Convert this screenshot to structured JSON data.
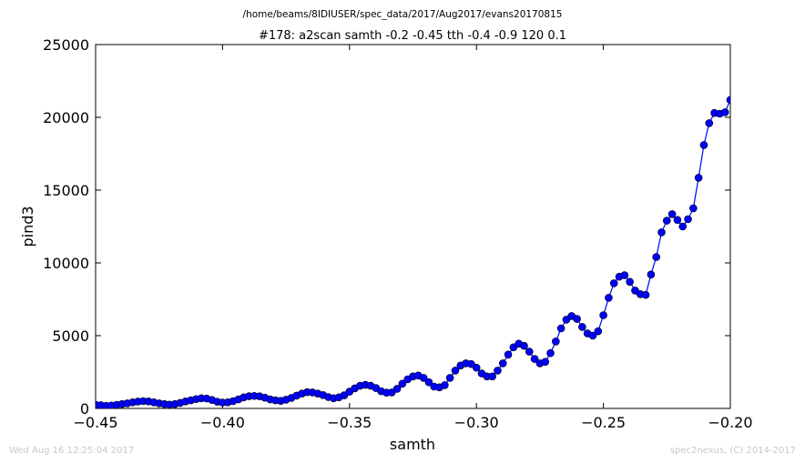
{
  "header": {
    "file_path": "/home/beams/8IDIUSER/spec_data/2017/Aug2017/evans20170815"
  },
  "footer": {
    "timestamp": "Wed Aug 16 12:25:04 2017",
    "credit": "spec2nexus, (C) 2014-2017"
  },
  "chart_data": {
    "type": "line",
    "title": "#178: a2scan  samth -0.2 -0.45  tth -0.4 -0.9  120 0.1",
    "xlabel": "samth",
    "ylabel": "pind3",
    "xlim": [
      -0.45,
      -0.2
    ],
    "ylim": [
      0,
      25000
    ],
    "xticks": [
      -0.45,
      -0.4,
      -0.35,
      -0.3,
      -0.25,
      -0.2
    ],
    "xtick_labels": [
      "−0.45",
      "−0.40",
      "−0.35",
      "−0.30",
      "−0.25",
      "−0.20"
    ],
    "yticks": [
      0,
      5000,
      10000,
      15000,
      20000,
      25000
    ],
    "ytick_labels": [
      "0",
      "5000",
      "10000",
      "15000",
      "20000",
      "25000"
    ],
    "grid": false,
    "legend": false,
    "series_color": "#0000ff",
    "marker": "circle",
    "x": [
      -0.45,
      -0.447917,
      -0.445833,
      -0.44375,
      -0.441667,
      -0.439583,
      -0.4375,
      -0.435417,
      -0.433333,
      -0.43125,
      -0.429167,
      -0.427083,
      -0.425,
      -0.422917,
      -0.420833,
      -0.41875,
      -0.416667,
      -0.414583,
      -0.4125,
      -0.410417,
      -0.408333,
      -0.40625,
      -0.404167,
      -0.402083,
      -0.4,
      -0.397917,
      -0.395833,
      -0.39375,
      -0.391667,
      -0.389583,
      -0.3875,
      -0.385417,
      -0.383333,
      -0.38125,
      -0.379167,
      -0.377083,
      -0.375,
      -0.372917,
      -0.370833,
      -0.36875,
      -0.366667,
      -0.364583,
      -0.3625,
      -0.360417,
      -0.358333,
      -0.35625,
      -0.354167,
      -0.352083,
      -0.35,
      -0.347917,
      -0.345833,
      -0.34375,
      -0.341667,
      -0.339583,
      -0.3375,
      -0.335417,
      -0.333333,
      -0.33125,
      -0.329167,
      -0.327083,
      -0.325,
      -0.322917,
      -0.320833,
      -0.31875,
      -0.316667,
      -0.314583,
      -0.3125,
      -0.310417,
      -0.308333,
      -0.30625,
      -0.304167,
      -0.302083,
      -0.3,
      -0.297917,
      -0.295833,
      -0.29375,
      -0.291667,
      -0.289583,
      -0.2875,
      -0.285417,
      -0.283333,
      -0.28125,
      -0.279167,
      -0.277083,
      -0.275,
      -0.272917,
      -0.270833,
      -0.26875,
      -0.266667,
      -0.264583,
      -0.2625,
      -0.260417,
      -0.258333,
      -0.25625,
      -0.254167,
      -0.252083,
      -0.25,
      -0.247917,
      -0.245833,
      -0.24375,
      -0.241667,
      -0.239583,
      -0.2375,
      -0.235417,
      -0.233333,
      -0.23125,
      -0.229167,
      -0.227083,
      -0.225,
      -0.222917,
      -0.220833,
      -0.21875,
      -0.216667,
      -0.214583,
      -0.2125,
      -0.210417,
      -0.208333,
      -0.20625,
      -0.204167,
      -0.202083,
      -0.2
    ],
    "y": [
      250,
      220,
      180,
      200,
      250,
      300,
      350,
      420,
      470,
      500,
      480,
      420,
      350,
      300,
      260,
      300,
      380,
      480,
      560,
      640,
      700,
      680,
      580,
      460,
      400,
      420,
      500,
      620,
      760,
      840,
      860,
      830,
      740,
      620,
      560,
      520,
      600,
      720,
      880,
      1020,
      1120,
      1100,
      1020,
      920,
      780,
      700,
      760,
      900,
      1150,
      1380,
      1560,
      1620,
      1560,
      1400,
      1180,
      1080,
      1100,
      1350,
      1700,
      2000,
      2200,
      2260,
      2100,
      1800,
      1500,
      1450,
      1600,
      2100,
      2600,
      2950,
      3100,
      3050,
      2800,
      2400,
      2200,
      2200,
      2600,
      3100,
      3700,
      4200,
      4450,
      4300,
      3900,
      3400,
      3100,
      3200,
      3800,
      4600,
      5500,
      6100,
      6350,
      6150,
      5600,
      5150,
      5000,
      5300,
      6400,
      7600,
      8600,
      9050,
      9150,
      8700,
      8100,
      7850,
      7800,
      9200,
      10400,
      12100,
      12900,
      13350,
      12950,
      12500,
      13000,
      13750,
      15850,
      18100,
      19600,
      20300,
      20250,
      20350,
      21200
    ]
  }
}
